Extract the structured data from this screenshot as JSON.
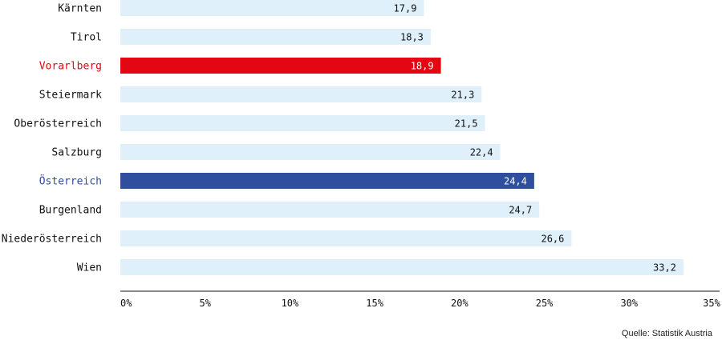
{
  "chart_data": {
    "type": "bar",
    "orientation": "horizontal",
    "categories": [
      "Kärnten",
      "Tirol",
      "Vorarlberg",
      "Steiermark",
      "Oberösterreich",
      "Salzburg",
      "Österreich",
      "Burgenland",
      "Niederösterreich",
      "Wien"
    ],
    "values": [
      17.9,
      18.3,
      18.9,
      21.3,
      21.5,
      22.4,
      24.4,
      24.7,
      26.6,
      33.2
    ],
    "value_labels": [
      "17,9",
      "18,3",
      "18,9",
      "21,3",
      "21,5",
      "22,4",
      "24,4",
      "24,7",
      "26,6",
      "33,2"
    ],
    "highlight": {
      "Vorarlberg": "#e30613",
      "Österreich": "#2f4f9e"
    },
    "bar_color": "#dff0fb",
    "xlim": [
      0,
      35
    ],
    "x_ticks": [
      0,
      5,
      10,
      15,
      20,
      25,
      30,
      35
    ],
    "x_tick_labels": [
      "0%",
      "5%",
      "10%",
      "15%",
      "20%",
      "25%",
      "30%",
      "35%"
    ],
    "grid": false
  },
  "source": "Quelle: Statistik Austria"
}
